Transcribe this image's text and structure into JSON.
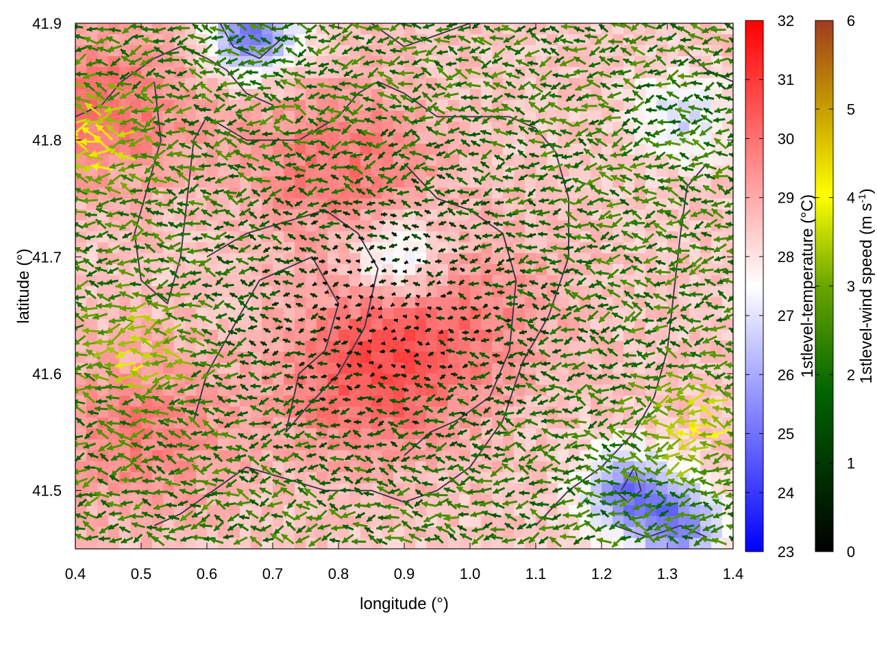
{
  "chart_data": {
    "type": "heatmap",
    "title": "",
    "xlabel": "longitude (°)",
    "ylabel": "latitude (°)",
    "xlim": [
      0.4,
      1.4
    ],
    "ylim": [
      41.45,
      41.9
    ],
    "x_ticks": [
      "0.4",
      "0.5",
      "0.6",
      "0.7",
      "0.8",
      "0.9",
      "1.0",
      "1.1",
      "1.2",
      "1.3",
      "1.4"
    ],
    "x_tick_values": [
      0.4,
      0.5,
      0.6,
      0.7,
      0.8,
      0.9,
      1.0,
      1.1,
      1.2,
      1.3,
      1.4
    ],
    "y_ticks": [
      "41.5",
      "41.6",
      "41.7",
      "41.8",
      "41.9"
    ],
    "y_tick_values": [
      41.5,
      41.6,
      41.7,
      41.8,
      41.9
    ],
    "temperature_colorbar": {
      "label": "1stlevel-temperature (°C)",
      "range": [
        23,
        32
      ],
      "ticks": [
        "23",
        "24",
        "25",
        "26",
        "27",
        "28",
        "29",
        "30",
        "31",
        "32"
      ],
      "colors": [
        "#0000ff",
        "#ffffff",
        "#ff0000"
      ]
    },
    "wind_colorbar": {
      "label_prefix": "1stlevel-wind speed (m s",
      "label_exponent": "-1",
      "label_suffix": ")",
      "range": [
        0,
        6
      ],
      "ticks": [
        "0",
        "1",
        "2",
        "3",
        "4",
        "5",
        "6"
      ],
      "colors": [
        "#000000",
        "#006400",
        "#6aa500",
        "#ffff00",
        "#c8a000",
        "#a03c1e"
      ]
    },
    "temperature_field_approx": {
      "description_units": "°C",
      "background": 28.5,
      "warm_centers": [
        {
          "lon": 0.85,
          "lat": 41.6,
          "value": 30.5
        },
        {
          "lon": 0.8,
          "lat": 41.78,
          "value": 30.0
        },
        {
          "lon": 0.45,
          "lat": 41.83,
          "value": 30.0
        },
        {
          "lon": 0.5,
          "lat": 41.55,
          "value": 29.8
        },
        {
          "lon": 1.0,
          "lat": 41.65,
          "value": 29.6
        }
      ],
      "cool_centers": [
        {
          "lon": 0.67,
          "lat": 41.89,
          "value": 25.0
        },
        {
          "lon": 1.24,
          "lat": 41.5,
          "value": 25.3
        },
        {
          "lon": 1.32,
          "lat": 41.47,
          "value": 25.5
        },
        {
          "lon": 1.32,
          "lat": 41.82,
          "value": 26.8
        },
        {
          "lon": 0.89,
          "lat": 41.7,
          "value": 26.5
        }
      ]
    },
    "wind_field_approx": {
      "units": "m s-1",
      "prevailing_direction": "from east (arrows point west)",
      "calm_region": {
        "lon": [
          0.7,
          1.05
        ],
        "lat": [
          41.55,
          41.75
        ]
      },
      "strong_regions": [
        {
          "lon": 0.42,
          "lat": 41.8,
          "speed": 4.0
        },
        {
          "lon": 1.34,
          "lat": 41.55,
          "speed": 3.8
        },
        {
          "lon": 0.5,
          "lat": 41.62,
          "speed": 3.5
        }
      ]
    }
  }
}
